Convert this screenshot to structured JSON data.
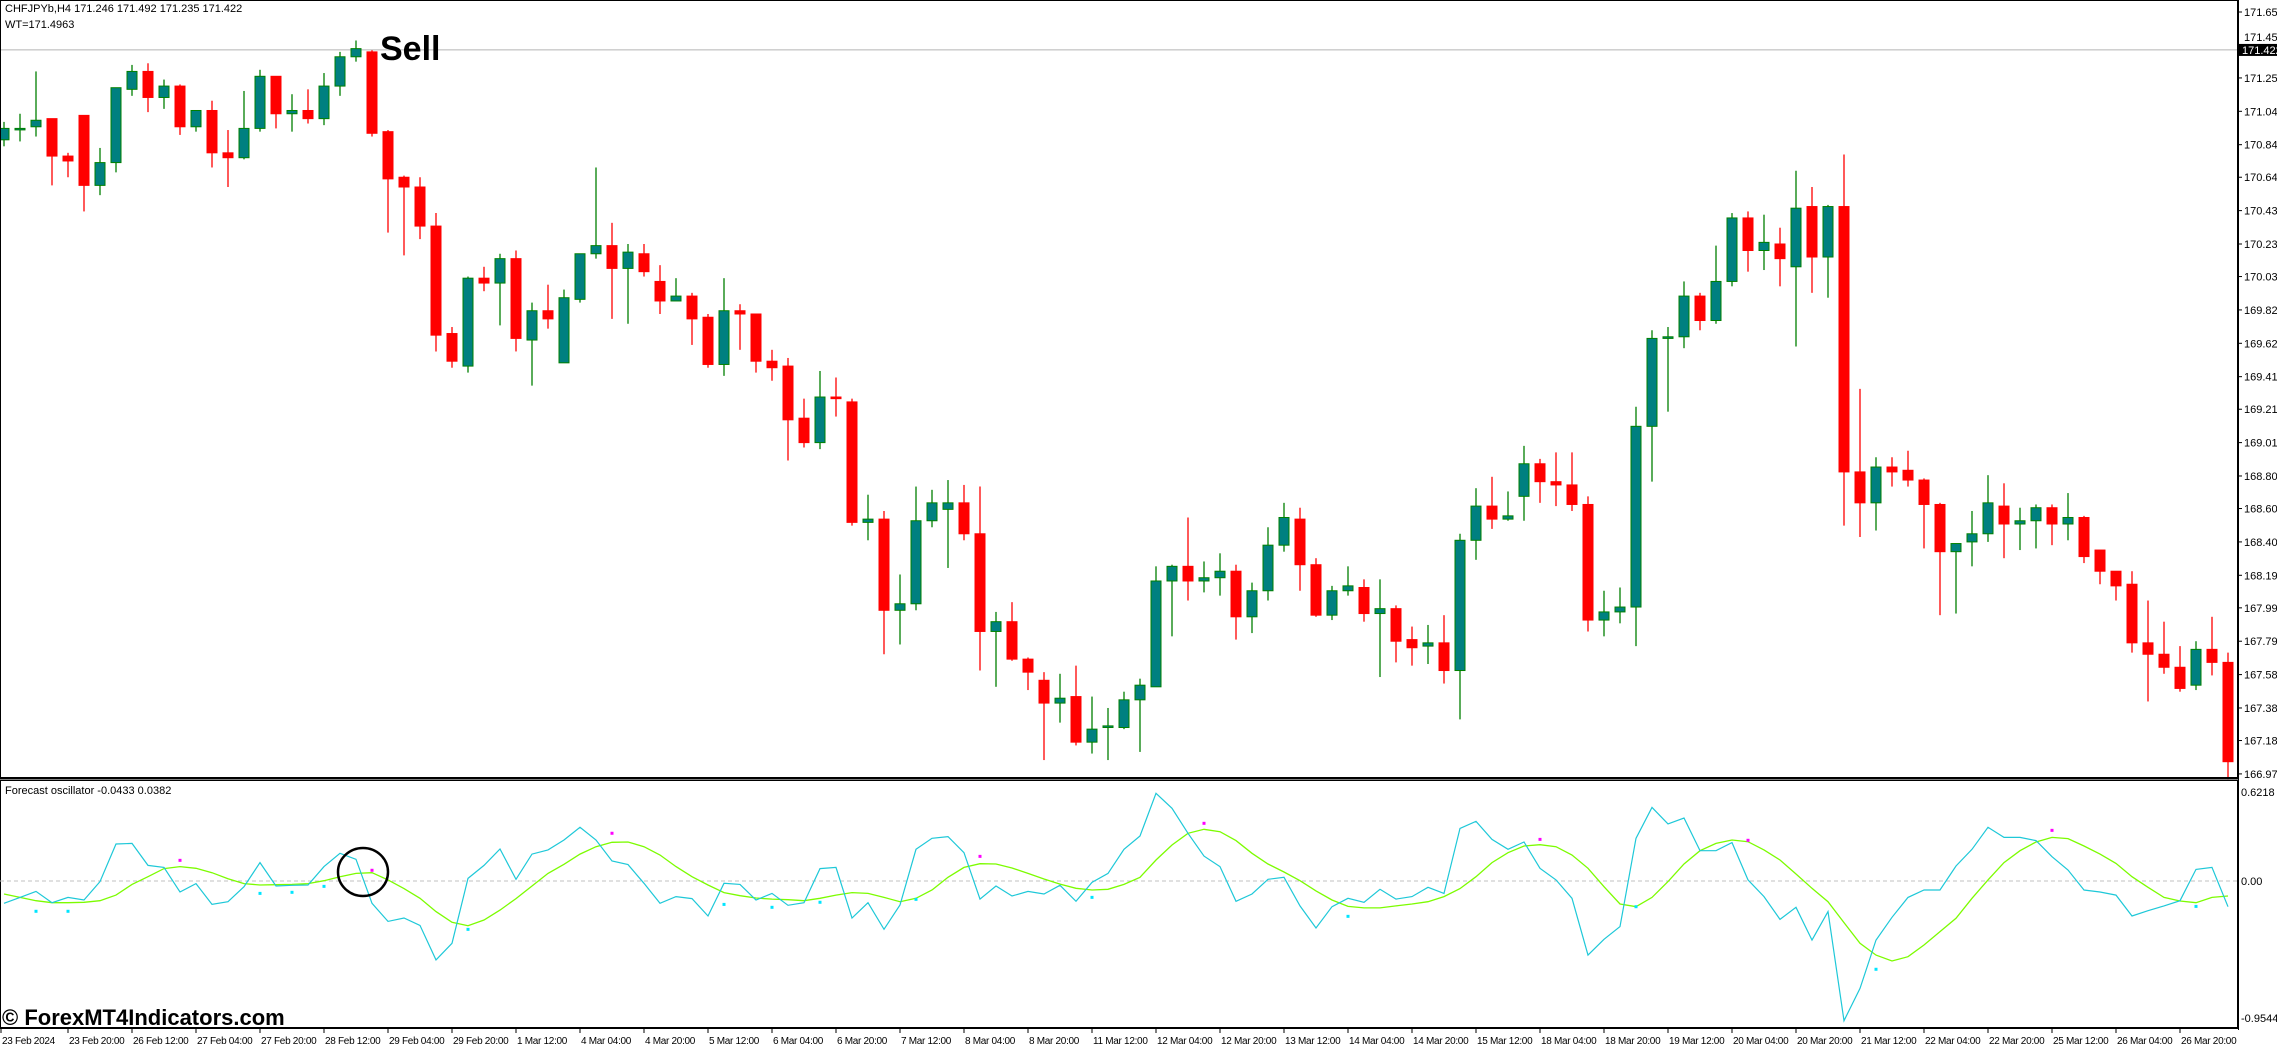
{
  "header": {
    "symbol_line": "CHFJPYb,H4  171.246 171.492 171.235 171.422",
    "wt_line": "WT=171.4963"
  },
  "annotation": {
    "sell_label": "Sell"
  },
  "current_price": {
    "value": 171.422,
    "label": "171.422"
  },
  "price_axis": {
    "labels": [
      "171.655",
      "171.455",
      "171.250",
      "171.045",
      "170.840",
      "170.640",
      "170.435",
      "170.230",
      "170.030",
      "169.825",
      "169.620",
      "169.415",
      "169.215",
      "169.010",
      "168.805",
      "168.605",
      "168.400",
      "168.195",
      "167.995",
      "167.790",
      "167.585",
      "167.380",
      "167.180",
      "166.975"
    ],
    "range": [
      166.975,
      171.655
    ]
  },
  "oscillator": {
    "title": "Forecast oscillator -0.0433 0.0382",
    "axis_labels": {
      "top": "0.6218",
      "zero": "0.00",
      "bottom": "-0.9544"
    },
    "range": [
      -0.9544,
      0.6218
    ],
    "forecast_color": "#1ec8d8",
    "signal_color": "#7cfc00",
    "peak_dot_color": "#ff00ff",
    "trough_dot_color": "#00e5ff",
    "forecast": [
      -0.146,
      -0.107,
      -0.068,
      -0.142,
      -0.107,
      -0.124,
      -0.004,
      0.242,
      0.246,
      0.102,
      0.089,
      -0.072,
      -0.017,
      -0.153,
      -0.135,
      -0.037,
      0.12,
      -0.033,
      -0.028,
      -0.026,
      0.094,
      0.181,
      0.142,
      -0.146,
      -0.264,
      -0.242,
      -0.29,
      -0.516,
      -0.407,
      0.017,
      0.102,
      0.209,
      0.011,
      0.176,
      0.203,
      0.268,
      0.351,
      0.268,
      0.131,
      0.107,
      -0.015,
      -0.146,
      -0.102,
      -0.115,
      -0.229,
      -0.015,
      -0.022,
      -0.124,
      -0.081,
      -0.159,
      -0.142,
      0.081,
      0.089,
      -0.242,
      -0.142,
      -0.316,
      -0.157,
      0.207,
      0.279,
      0.29,
      0.185,
      -0.118,
      -0.033,
      -0.098,
      -0.068,
      -0.085,
      -0.028,
      -0.133,
      -0.009,
      0.05,
      0.207,
      0.294,
      0.573,
      0.475,
      0.312,
      0.163,
      0.094,
      -0.133,
      -0.085,
      0.011,
      0.024,
      -0.163,
      -0.307,
      -0.168,
      -0.113,
      -0.139,
      -0.054,
      -0.118,
      -0.102,
      -0.041,
      -0.081,
      0.344,
      0.39,
      0.272,
      0.207,
      0.255,
      0.083,
      0.007,
      -0.113,
      -0.484,
      -0.381,
      -0.298,
      0.279,
      0.481,
      0.373,
      0.412,
      0.198,
      0.198,
      0.251,
      0.007,
      -0.102,
      -0.251,
      -0.172,
      -0.386,
      -0.2,
      -0.913,
      -0.702,
      -0.386,
      -0.237,
      -0.107,
      -0.059,
      -0.059,
      0.098,
      0.207,
      0.351,
      0.285,
      0.285,
      0.264,
      0.159,
      0.072,
      -0.059,
      -0.072,
      -0.092,
      -0.229,
      -0.194,
      -0.163,
      -0.129,
      0.076,
      0.089,
      -0.168
    ],
    "signal": [
      -0.085,
      -0.107,
      -0.129,
      -0.142,
      -0.142,
      -0.139,
      -0.129,
      -0.092,
      -0.022,
      0.028,
      0.081,
      0.094,
      0.083,
      0.054,
      0.015,
      -0.017,
      -0.026,
      -0.024,
      -0.022,
      -0.017,
      0.002,
      0.028,
      0.05,
      0.054,
      0.007,
      -0.05,
      -0.113,
      -0.2,
      -0.27,
      -0.292,
      -0.255,
      -0.19,
      -0.115,
      -0.033,
      0.05,
      0.109,
      0.176,
      0.224,
      0.253,
      0.255,
      0.224,
      0.17,
      0.094,
      0.028,
      -0.026,
      -0.076,
      -0.096,
      -0.111,
      -0.118,
      -0.122,
      -0.129,
      -0.113,
      -0.092,
      -0.076,
      -0.081,
      -0.107,
      -0.135,
      -0.113,
      -0.059,
      0.024,
      0.089,
      0.113,
      0.111,
      0.085,
      0.05,
      0.013,
      -0.02,
      -0.048,
      -0.059,
      -0.054,
      -0.022,
      0.024,
      0.137,
      0.235,
      0.312,
      0.338,
      0.322,
      0.264,
      0.181,
      0.111,
      0.059,
      0.002,
      -0.065,
      -0.124,
      -0.166,
      -0.176,
      -0.176,
      -0.163,
      -0.15,
      -0.135,
      -0.102,
      -0.05,
      0.028,
      0.12,
      0.185,
      0.229,
      0.237,
      0.224,
      0.17,
      0.083,
      -0.037,
      -0.15,
      -0.168,
      -0.107,
      -0.004,
      0.111,
      0.198,
      0.246,
      0.268,
      0.257,
      0.203,
      0.137,
      0.046,
      -0.048,
      -0.135,
      -0.272,
      -0.407,
      -0.484,
      -0.523,
      -0.495,
      -0.418,
      -0.331,
      -0.244,
      -0.113,
      0.007,
      0.12,
      0.198,
      0.255,
      0.285,
      0.277,
      0.229,
      0.176,
      0.115,
      0.028,
      -0.041,
      -0.107,
      -0.131,
      -0.142,
      -0.107,
      -0.098
    ],
    "peak_dots": [
      [
        11,
        0.135
      ],
      [
        23,
        0.07
      ],
      [
        38,
        0.312
      ],
      [
        61,
        0.161
      ],
      [
        75,
        0.377
      ],
      [
        96,
        0.272
      ],
      [
        109,
        0.266
      ],
      [
        128,
        0.331
      ]
    ],
    "trough_dots": [
      [
        2,
        -0.198
      ],
      [
        4,
        -0.198
      ],
      [
        16,
        -0.081
      ],
      [
        18,
        -0.074
      ],
      [
        20,
        -0.035
      ],
      [
        29,
        -0.316
      ],
      [
        45,
        -0.153
      ],
      [
        48,
        -0.172
      ],
      [
        51,
        -0.139
      ],
      [
        57,
        -0.12
      ],
      [
        68,
        -0.107
      ],
      [
        84,
        -0.231
      ],
      [
        102,
        -0.168
      ],
      [
        117,
        -0.577
      ],
      [
        137,
        -0.166
      ]
    ],
    "highlight_circle_bar": 23
  },
  "candle_colors": {
    "bull_fill": "#008080",
    "bull_edge": "#008000",
    "bear": "#ff0000"
  },
  "candles_ohlc": [
    [
      170.87,
      170.98,
      170.83,
      170.94
    ],
    [
      170.94,
      171.03,
      170.86,
      170.94
    ],
    [
      170.95,
      171.29,
      170.89,
      170.99
    ],
    [
      171.0,
      171.0,
      170.59,
      170.77
    ],
    [
      170.77,
      170.79,
      170.64,
      170.74
    ],
    [
      171.02,
      171.02,
      170.43,
      170.59
    ],
    [
      170.59,
      170.82,
      170.53,
      170.73
    ],
    [
      170.73,
      171.19,
      170.67,
      171.19
    ],
    [
      171.18,
      171.33,
      171.14,
      171.29
    ],
    [
      171.29,
      171.34,
      171.04,
      171.13
    ],
    [
      171.13,
      171.24,
      171.06,
      171.2
    ],
    [
      171.2,
      171.21,
      170.9,
      170.95
    ],
    [
      170.95,
      171.05,
      170.92,
      171.05
    ],
    [
      171.05,
      171.11,
      170.7,
      170.79
    ],
    [
      170.79,
      170.93,
      170.58,
      170.76
    ],
    [
      170.76,
      171.17,
      170.75,
      170.94
    ],
    [
      170.94,
      171.3,
      170.92,
      171.26
    ],
    [
      171.26,
      171.26,
      170.94,
      171.03
    ],
    [
      171.03,
      171.15,
      170.92,
      171.05
    ],
    [
      171.05,
      171.18,
      170.97,
      171.0
    ],
    [
      171.0,
      171.28,
      170.96,
      171.2
    ],
    [
      171.2,
      171.41,
      171.14,
      171.38
    ],
    [
      171.38,
      171.48,
      171.35,
      171.43
    ],
    [
      171.41,
      171.42,
      170.89,
      170.91
    ],
    [
      170.92,
      170.93,
      170.3,
      170.63
    ],
    [
      170.64,
      170.65,
      170.16,
      170.58
    ],
    [
      170.58,
      170.64,
      170.26,
      170.34
    ],
    [
      170.34,
      170.42,
      169.57,
      169.67
    ],
    [
      169.68,
      169.72,
      169.47,
      169.51
    ],
    [
      169.48,
      170.03,
      169.44,
      170.02
    ],
    [
      170.02,
      170.09,
      169.94,
      169.99
    ],
    [
      169.99,
      170.17,
      169.73,
      170.14
    ],
    [
      170.14,
      170.19,
      169.57,
      169.65
    ],
    [
      169.64,
      169.87,
      169.36,
      169.82
    ],
    [
      169.82,
      169.98,
      169.71,
      169.77
    ],
    [
      169.5,
      169.95,
      169.5,
      169.9
    ],
    [
      169.89,
      170.17,
      169.87,
      170.17
    ],
    [
      170.17,
      170.7,
      170.14,
      170.22
    ],
    [
      170.22,
      170.36,
      169.77,
      170.08
    ],
    [
      170.08,
      170.23,
      169.74,
      170.18
    ],
    [
      170.17,
      170.23,
      170.03,
      170.06
    ],
    [
      170.0,
      170.1,
      169.8,
      169.88
    ],
    [
      169.88,
      170.02,
      169.88,
      169.91
    ],
    [
      169.91,
      169.93,
      169.61,
      169.77
    ],
    [
      169.78,
      169.8,
      169.47,
      169.49
    ],
    [
      169.49,
      170.02,
      169.42,
      169.82
    ],
    [
      169.82,
      169.86,
      169.58,
      169.8
    ],
    [
      169.8,
      169.8,
      169.44,
      169.51
    ],
    [
      169.51,
      169.58,
      169.39,
      169.47
    ],
    [
      169.48,
      169.53,
      168.9,
      169.15
    ],
    [
      169.16,
      169.28,
      168.98,
      169.01
    ],
    [
      169.01,
      169.45,
      168.97,
      169.29
    ],
    [
      169.29,
      169.41,
      169.17,
      169.28
    ],
    [
      169.26,
      169.28,
      168.5,
      168.52
    ],
    [
      168.52,
      168.69,
      168.41,
      168.54
    ],
    [
      168.54,
      168.59,
      167.71,
      167.98
    ],
    [
      167.98,
      168.2,
      167.77,
      168.02
    ],
    [
      168.02,
      168.74,
      167.98,
      168.53
    ],
    [
      168.53,
      168.72,
      168.49,
      168.64
    ],
    [
      168.6,
      168.78,
      168.24,
      168.64
    ],
    [
      168.64,
      168.75,
      168.41,
      168.45
    ],
    [
      168.45,
      168.74,
      167.61,
      167.85
    ],
    [
      167.85,
      167.97,
      167.51,
      167.91
    ],
    [
      167.91,
      168.03,
      167.67,
      167.68
    ],
    [
      167.68,
      167.69,
      167.49,
      167.6
    ],
    [
      167.55,
      167.6,
      167.06,
      167.41
    ],
    [
      167.41,
      167.59,
      167.29,
      167.44
    ],
    [
      167.45,
      167.64,
      167.15,
      167.17
    ],
    [
      167.17,
      167.45,
      167.1,
      167.25
    ],
    [
      167.26,
      167.38,
      167.06,
      167.27
    ],
    [
      167.26,
      167.48,
      167.25,
      167.43
    ],
    [
      167.43,
      167.56,
      167.11,
      167.52
    ],
    [
      167.51,
      168.25,
      167.51,
      168.16
    ],
    [
      168.16,
      168.26,
      167.82,
      168.25
    ],
    [
      168.25,
      168.55,
      168.04,
      168.16
    ],
    [
      168.16,
      168.28,
      168.09,
      168.18
    ],
    [
      168.18,
      168.33,
      168.07,
      168.22
    ],
    [
      168.22,
      168.26,
      167.8,
      167.94
    ],
    [
      167.94,
      168.15,
      167.84,
      168.1
    ],
    [
      168.1,
      168.49,
      168.04,
      168.38
    ],
    [
      168.38,
      168.64,
      168.34,
      168.55
    ],
    [
      168.54,
      168.61,
      168.1,
      168.26
    ],
    [
      168.26,
      168.3,
      167.94,
      167.95
    ],
    [
      167.95,
      168.13,
      167.92,
      168.1
    ],
    [
      168.1,
      168.25,
      168.07,
      168.13
    ],
    [
      168.12,
      168.17,
      167.91,
      167.96
    ],
    [
      167.96,
      168.17,
      167.57,
      167.99
    ],
    [
      167.99,
      168.01,
      167.66,
      167.79
    ],
    [
      167.8,
      167.88,
      167.64,
      167.75
    ],
    [
      167.76,
      167.89,
      167.65,
      167.78
    ],
    [
      167.78,
      167.95,
      167.53,
      167.61
    ],
    [
      167.61,
      168.45,
      167.31,
      168.41
    ],
    [
      168.41,
      168.73,
      168.29,
      168.62
    ],
    [
      168.62,
      168.8,
      168.48,
      168.54
    ],
    [
      168.54,
      168.71,
      168.53,
      168.56
    ],
    [
      168.68,
      168.99,
      168.53,
      168.88
    ],
    [
      168.88,
      168.91,
      168.64,
      168.77
    ],
    [
      168.77,
      168.95,
      168.62,
      168.75
    ],
    [
      168.75,
      168.95,
      168.59,
      168.63
    ],
    [
      168.63,
      168.68,
      167.85,
      167.92
    ],
    [
      167.92,
      168.1,
      167.82,
      167.97
    ],
    [
      167.97,
      168.12,
      167.9,
      168.0
    ],
    [
      168.0,
      169.23,
      167.76,
      169.11
    ],
    [
      169.11,
      169.7,
      168.77,
      169.65
    ],
    [
      169.65,
      169.72,
      169.2,
      169.66
    ],
    [
      169.66,
      170.0,
      169.59,
      169.91
    ],
    [
      169.91,
      169.93,
      169.7,
      169.76
    ],
    [
      169.76,
      170.22,
      169.74,
      170.0
    ],
    [
      170.0,
      170.42,
      169.97,
      170.39
    ],
    [
      170.39,
      170.43,
      170.06,
      170.19
    ],
    [
      170.19,
      170.41,
      170.07,
      170.24
    ],
    [
      170.23,
      170.33,
      169.97,
      170.14
    ],
    [
      170.09,
      170.68,
      169.6,
      170.45
    ],
    [
      170.46,
      170.58,
      169.93,
      170.15
    ],
    [
      170.15,
      170.47,
      169.9,
      170.46
    ],
    [
      170.46,
      170.78,
      168.5,
      168.83
    ],
    [
      168.83,
      169.34,
      168.43,
      168.64
    ],
    [
      168.64,
      168.92,
      168.47,
      168.86
    ],
    [
      168.86,
      168.92,
      168.74,
      168.83
    ],
    [
      168.84,
      168.96,
      168.74,
      168.78
    ],
    [
      168.78,
      168.79,
      168.36,
      168.63
    ],
    [
      168.63,
      168.64,
      167.95,
      168.34
    ],
    [
      168.34,
      168.39,
      167.96,
      168.39
    ],
    [
      168.4,
      168.59,
      168.25,
      168.45
    ],
    [
      168.45,
      168.81,
      168.4,
      168.64
    ],
    [
      168.62,
      168.76,
      168.3,
      168.51
    ],
    [
      168.51,
      168.61,
      168.35,
      168.53
    ],
    [
      168.53,
      168.63,
      168.36,
      168.61
    ],
    [
      168.61,
      168.63,
      168.38,
      168.51
    ],
    [
      168.51,
      168.7,
      168.41,
      168.55
    ],
    [
      168.55,
      168.56,
      168.27,
      168.31
    ],
    [
      168.35,
      168.35,
      168.14,
      168.22
    ],
    [
      168.22,
      168.22,
      168.04,
      168.13
    ],
    [
      168.14,
      168.22,
      167.72,
      167.78
    ],
    [
      167.78,
      168.04,
      167.42,
      167.71
    ],
    [
      167.71,
      167.91,
      167.59,
      167.63
    ],
    [
      167.63,
      167.76,
      167.48,
      167.5
    ],
    [
      167.52,
      167.79,
      167.49,
      167.74
    ],
    [
      167.74,
      167.94,
      167.58,
      167.66
    ],
    [
      167.66,
      167.72,
      166.94,
      167.05
    ]
  ],
  "time_axis": {
    "labels": [
      "23 Feb 2024",
      "23 Feb 20:00",
      "26 Feb 12:00",
      "27 Feb 04:00",
      "27 Feb 20:00",
      "28 Feb 12:00",
      "29 Feb 04:00",
      "29 Feb 20:00",
      "1 Mar 12:00",
      "4 Mar 04:00",
      "4 Mar 20:00",
      "5 Mar 12:00",
      "6 Mar 04:00",
      "6 Mar 20:00",
      "7 Mar 12:00",
      "8 Mar 04:00",
      "8 Mar 20:00",
      "11 Mar 12:00",
      "12 Mar 04:00",
      "12 Mar 20:00",
      "13 Mar 12:00",
      "14 Mar 04:00",
      "14 Mar 20:00",
      "15 Mar 12:00",
      "18 Mar 04:00",
      "18 Mar 20:00",
      "19 Mar 12:00",
      "20 Mar 04:00",
      "20 Mar 20:00",
      "21 Mar 12:00",
      "22 Mar 04:00",
      "22 Mar 20:00",
      "25 Mar 12:00",
      "26 Mar 04:00",
      "26 Mar 20:00"
    ]
  },
  "watermark": {
    "text": "© ForexMT4Indicators.com"
  }
}
